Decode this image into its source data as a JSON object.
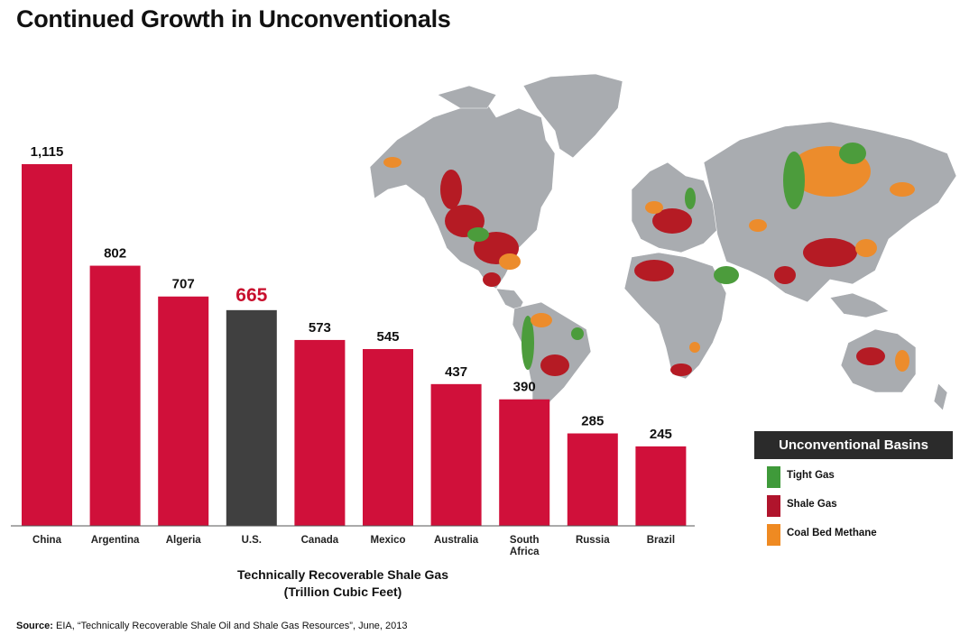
{
  "page": {
    "title": "Continued Growth in Unconventionals",
    "source_label": "Source:",
    "source_text": " EIA, “Technically Recoverable Shale Oil and Shale Gas Resources”, June, 2013"
  },
  "chart_data": {
    "type": "bar",
    "title": "Continued Growth in Unconventionals",
    "xlabel_line1": "Technically Recoverable Shale Gas",
    "xlabel_line2": "(Trillion Cubic Feet)",
    "ylabel": "",
    "categories": [
      [
        "China"
      ],
      [
        "Argentina"
      ],
      [
        "Algeria"
      ],
      [
        "U.S."
      ],
      [
        "Canada"
      ],
      [
        "Mexico"
      ],
      [
        "Australia"
      ],
      [
        "South",
        "Africa"
      ],
      [
        "Russia"
      ],
      [
        "Brazil"
      ]
    ],
    "values": [
      1115,
      802,
      707,
      665,
      573,
      545,
      437,
      390,
      285,
      245
    ],
    "value_labels": [
      "1,115",
      "802",
      "707",
      "665",
      "573",
      "545",
      "437",
      "390",
      "285",
      "245"
    ],
    "highlight_index": 3,
    "ylim": [
      0,
      1115
    ],
    "grid": false,
    "colors": {
      "bar": "#d0103a",
      "highlight": "#404040",
      "highlight_label": "#c8102e"
    }
  },
  "legend": {
    "title": "Unconventional Basins",
    "items": [
      {
        "label": "Tight Gas",
        "color": "#3f9a3a"
      },
      {
        "label": "Shale Gas",
        "color": "#b0142c"
      },
      {
        "label": "Coal Bed Methane",
        "color": "#ef8a22"
      }
    ]
  },
  "map": {
    "land_color": "#a9acb0",
    "colors": {
      "tight": "#4c9c3c",
      "shale": "#b51b24",
      "cbm": "#ec8c2c"
    }
  }
}
